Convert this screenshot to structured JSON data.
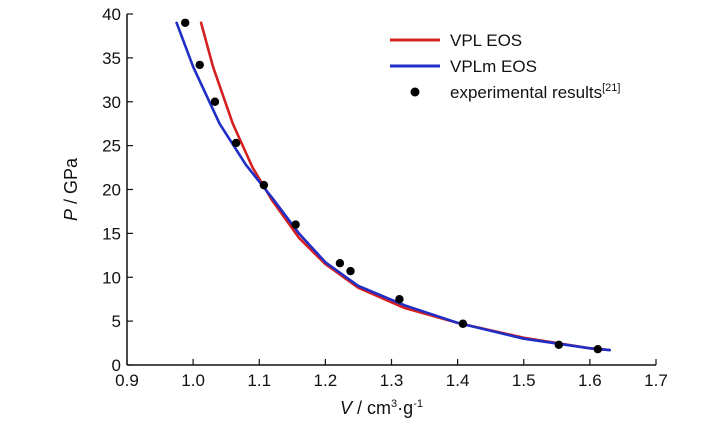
{
  "chart_data": {
    "type": "line",
    "title": "",
    "xlabel": {
      "symbol": "V",
      "unit_prefix": " / cm",
      "unit_exp1": "3",
      "unit_mid": "·g",
      "unit_exp2": "-1"
    },
    "ylabel": {
      "symbol": "P",
      "unit": " / GPa"
    },
    "xlim": [
      0.9,
      1.7
    ],
    "ylim": [
      0,
      40
    ],
    "x_ticks": [
      "0.9",
      "1.0",
      "1.1",
      "1.2",
      "1.3",
      "1.4",
      "1.5",
      "1.6",
      "1.7"
    ],
    "y_ticks": [
      "0",
      "5",
      "10",
      "15",
      "20",
      "25",
      "30",
      "35",
      "40"
    ],
    "legend_position": "top-right",
    "series": [
      {
        "name": "VPL EOS",
        "kind": "line",
        "color": "#d42020",
        "x": [
          1.012,
          1.03,
          1.06,
          1.09,
          1.12,
          1.16,
          1.2,
          1.25,
          1.32,
          1.4,
          1.5,
          1.6,
          1.63
        ],
        "y": [
          39.0,
          34.0,
          27.5,
          22.5,
          18.7,
          14.5,
          11.5,
          8.8,
          6.5,
          4.8,
          3.1,
          1.9,
          1.7
        ]
      },
      {
        "name": "VPLm EOS",
        "kind": "line",
        "color": "#1f2ec4",
        "x": [
          0.975,
          1.0,
          1.04,
          1.08,
          1.12,
          1.16,
          1.2,
          1.25,
          1.32,
          1.4,
          1.5,
          1.6,
          1.63
        ],
        "y": [
          39.0,
          34.0,
          27.5,
          22.8,
          19.0,
          15.0,
          11.7,
          9.0,
          6.8,
          4.8,
          3.0,
          1.9,
          1.7
        ]
      },
      {
        "name": "experimental results",
        "name_sup": "[21]",
        "kind": "scatter",
        "color": "#000000",
        "x": [
          0.988,
          1.01,
          1.033,
          1.065,
          1.107,
          1.155,
          1.222,
          1.238,
          1.312,
          1.408,
          1.553,
          1.612
        ],
        "y": [
          39.0,
          34.2,
          30.0,
          25.3,
          20.5,
          16.0,
          11.6,
          10.7,
          7.5,
          4.7,
          2.3,
          1.8
        ]
      }
    ]
  }
}
